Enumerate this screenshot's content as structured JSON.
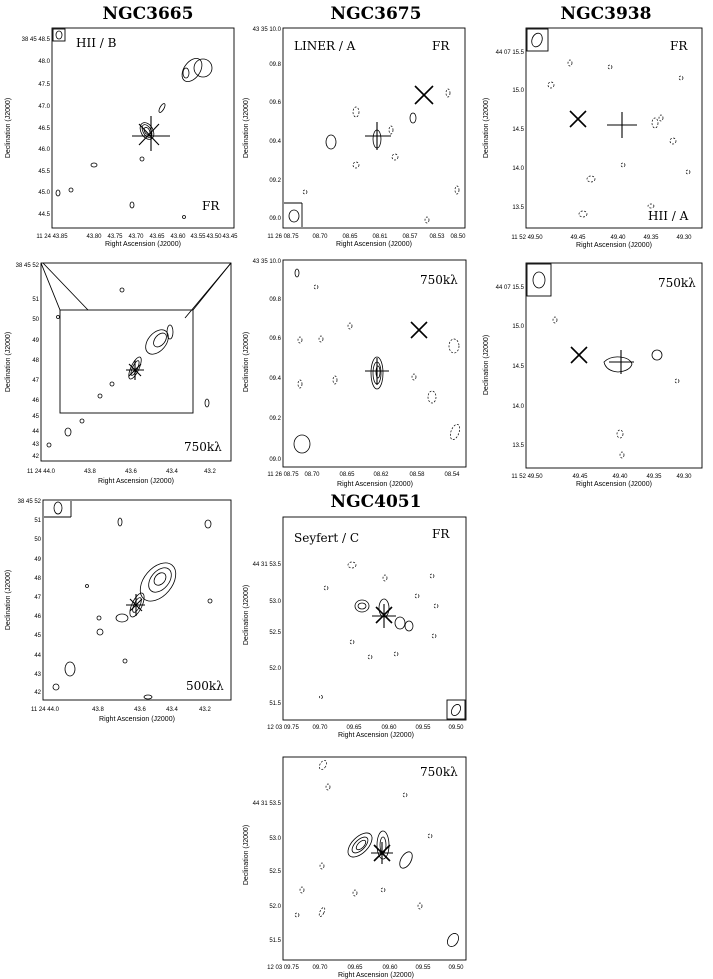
{
  "chart_data": [
    {
      "type": "contour",
      "galaxy": "NGC3665",
      "title": "NGC3665",
      "panel_label": "HII / B",
      "resolution_label": "FR",
      "ra_ticks": [
        "11 24 43.85",
        "43.80",
        "43.75",
        "43.70",
        "43.65",
        "43.60",
        "43.55",
        "43.50",
        "43.45"
      ],
      "dec_ticks": [
        "38 45 48.5",
        "48.0",
        "47.5",
        "47.0",
        "46.5",
        "46.0",
        "45.5",
        "45.0",
        "44.5"
      ],
      "xlabel": "Right Ascension (J2000)",
      "ylabel": "Declination (J2000)"
    },
    {
      "type": "contour",
      "galaxy": "NGC3675",
      "title": "NGC3675",
      "panel_label": "LINER / A",
      "resolution_label": "FR",
      "ra_ticks": [
        "11 26 08.75",
        "08.70",
        "08.65",
        "08.61",
        "08.57",
        "08.53",
        "08.50"
      ],
      "dec_ticks": [
        "43 35 10.0",
        "09.8",
        "09.6",
        "09.4",
        "09.2",
        "09.0"
      ],
      "xlabel": "Right Ascension (J2000)",
      "ylabel": "Declination (J2000)"
    },
    {
      "type": "contour",
      "galaxy": "NGC3938",
      "title": "NGC3938",
      "panel_label": "HII / A",
      "resolution_label": "FR",
      "ra_ticks": [
        "11 52 49.50",
        "49.45",
        "49.40",
        "49.35",
        "49.30"
      ],
      "dec_ticks": [
        "44 07 15.5",
        "15.0",
        "14.5",
        "14.0",
        "13.5"
      ],
      "xlabel": "Right Ascension (J2000)",
      "ylabel": "Declination (J2000)"
    },
    {
      "type": "contour",
      "galaxy": "NGC3665",
      "resolution_label": "750kλ",
      "ra_ticks": [
        "11 24 44.0",
        "43.8",
        "43.6",
        "43.4",
        "43.2"
      ],
      "dec_ticks": [
        "38 45 52",
        "51",
        "50",
        "49",
        "48",
        "47",
        "46",
        "45",
        "44",
        "43",
        "42"
      ],
      "xlabel": "Right Ascension (J2000)",
      "ylabel": "Declination (J2000)"
    },
    {
      "type": "contour",
      "galaxy": "NGC3675",
      "resolution_label": "750kλ",
      "ra_ticks": [
        "11 26 08.75",
        "08.70",
        "08.65",
        "08.62",
        "08.58",
        "08.54"
      ],
      "dec_ticks": [
        "43 35 10.0",
        "09.8",
        "09.6",
        "09.4",
        "09.2",
        "09.0"
      ],
      "xlabel": "Right Ascension (J2000)",
      "ylabel": "Declination (J2000)"
    },
    {
      "type": "contour",
      "galaxy": "NGC3938",
      "resolution_label": "750kλ",
      "ra_ticks": [
        "11 52 49.50",
        "49.45",
        "49.40",
        "49.35",
        "49.30"
      ],
      "dec_ticks": [
        "44 07 15.5",
        "15.0",
        "14.5",
        "14.0",
        "13.5"
      ],
      "xlabel": "Right Ascension (J2000)",
      "ylabel": "Declination (J2000)"
    },
    {
      "type": "contour",
      "galaxy": "NGC3665",
      "resolution_label": "500kλ",
      "ra_ticks": [
        "11 24 44.0",
        "43.8",
        "43.6",
        "43.4",
        "43.2"
      ],
      "dec_ticks": [
        "38 45 52",
        "51",
        "50",
        "49",
        "48",
        "47",
        "46",
        "45",
        "44",
        "43",
        "42"
      ],
      "xlabel": "Right Ascension (J2000)",
      "ylabel": "Declination (J2000)"
    },
    {
      "type": "contour",
      "galaxy": "NGC4051",
      "title": "NGC4051",
      "panel_label": "Seyfert / C",
      "resolution_label": "FR",
      "ra_ticks": [
        "12 03 09.75",
        "09.70",
        "09.65",
        "09.60",
        "09.55",
        "09.50"
      ],
      "dec_ticks": [
        "44 31 53.5",
        "53.0",
        "52.5",
        "52.0",
        "51.5"
      ],
      "xlabel": "Right Ascension (J2000)",
      "ylabel": "Declination (J2000)"
    },
    {
      "type": "contour",
      "galaxy": "NGC4051",
      "resolution_label": "750kλ",
      "ra_ticks": [
        "12 03 09.75",
        "09.70",
        "09.65",
        "09.60",
        "09.55",
        "09.50"
      ],
      "dec_ticks": [
        "44 31 53.5",
        "53.0",
        "52.5",
        "52.0",
        "51.5"
      ],
      "xlabel": "Right Ascension (J2000)",
      "ylabel": "Declination (J2000)"
    }
  ]
}
